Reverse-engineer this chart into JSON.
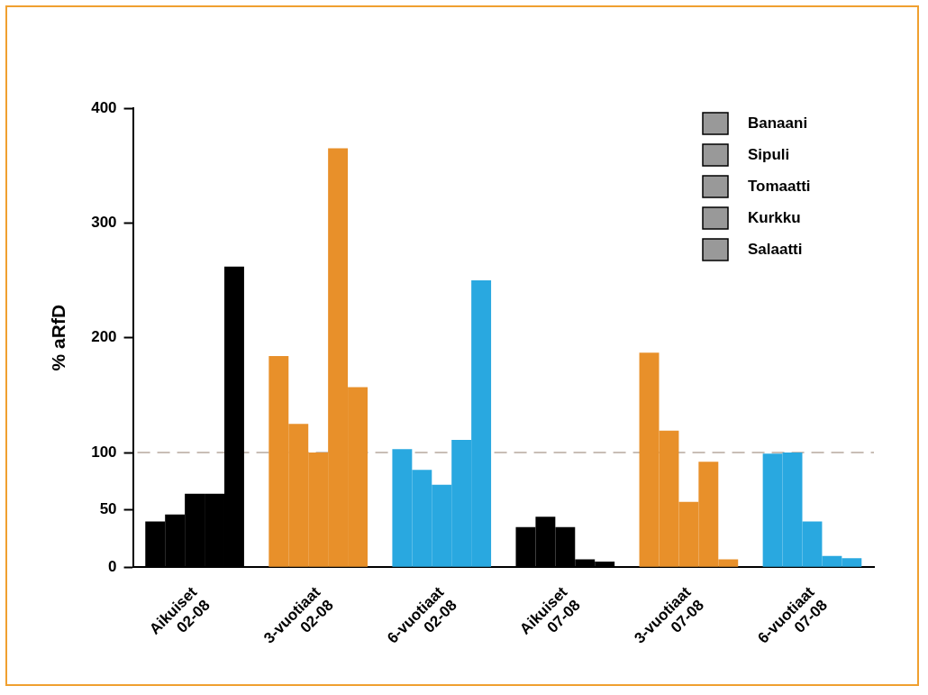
{
  "chart_data": {
    "type": "bar",
    "ylabel": "% aRfD",
    "categories": [
      "Aikuiset\n02-08",
      "3-vuotiaat\n02-08",
      "6-vuotiaat\n02-08",
      "Aikuiset\n07-08",
      "3-vuotiaat\n07-08",
      "6-vuotiaat\n07-08"
    ],
    "series": [
      {
        "name": "Banaani",
        "color": "#999999",
        "colors": [
          "#000000",
          "#e8902a",
          "#29a8e0",
          "#000000",
          "#e8902a",
          "#29a8e0"
        ],
        "values": [
          40,
          184,
          103,
          35,
          187,
          99
        ]
      },
      {
        "name": "Sipuli",
        "color": "#999999",
        "colors": [
          "#000000",
          "#e8902a",
          "#29a8e0",
          "#000000",
          "#e8902a",
          "#29a8e0"
        ],
        "values": [
          46,
          125,
          85,
          44,
          119,
          100
        ]
      },
      {
        "name": "Tomaatti",
        "color": "#999999",
        "colors": [
          "#000000",
          "#e8902a",
          "#29a8e0",
          "#000000",
          "#e8902a",
          "#29a8e0"
        ],
        "values": [
          64,
          100,
          72,
          35,
          57,
          40
        ]
      },
      {
        "name": "Kurkku",
        "color": "#999999",
        "colors": [
          "#000000",
          "#e8902a",
          "#29a8e0",
          "#000000",
          "#e8902a",
          "#29a8e0"
        ],
        "values": [
          64,
          365,
          111,
          7,
          92,
          10
        ]
      },
      {
        "name": "Salaatti",
        "color": "#999999",
        "colors": [
          "#000000",
          "#e8902a",
          "#29a8e0",
          "#000000",
          "#e8902a",
          "#29a8e0"
        ],
        "values": [
          262,
          157,
          250,
          5,
          7,
          8
        ]
      }
    ],
    "ylim": [
      0,
      400
    ],
    "yticks": [
      0,
      50,
      100,
      200,
      300,
      400
    ],
    "ref_lines": [
      {
        "axis": "y",
        "value": 100,
        "color": "#c8beb6",
        "line_style": "dashed"
      }
    ],
    "grid": false,
    "legend": "top right"
  }
}
